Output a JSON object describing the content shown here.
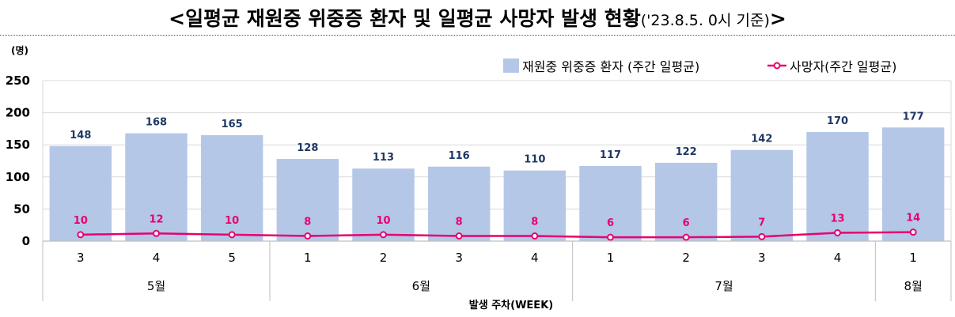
{
  "title": {
    "main": "<일평균 재원중 위중증 환자 및 일평균 사망자 발생 현황",
    "sub": "('23.8.5. 0시 기준)",
    "end": ">"
  },
  "chart_data": {
    "type": "bar",
    "ylabel": "(명)",
    "xlabel": "발생 주차(WEEK)",
    "ylim": [
      0,
      250
    ],
    "yticks": [
      "250",
      "200",
      "150",
      "100",
      "50",
      "0"
    ],
    "categories": [
      "3",
      "4",
      "5",
      "1",
      "2",
      "3",
      "4",
      "1",
      "2",
      "3",
      "4",
      "1"
    ],
    "months": [
      {
        "label": "5월",
        "weeks": 3
      },
      {
        "label": "6월",
        "weeks": 4
      },
      {
        "label": "7월",
        "weeks": 4
      },
      {
        "label": "8월",
        "weeks": 1
      }
    ],
    "series": [
      {
        "name": "재원중 위중증 환자 (주간 일평균)",
        "type": "bar",
        "color": "#b4c7e7",
        "values": [
          148,
          168,
          165,
          128,
          113,
          116,
          110,
          117,
          122,
          142,
          170,
          177
        ],
        "labels": [
          "148",
          "168",
          "165",
          "128",
          "113",
          "116",
          "110",
          "117",
          "122",
          "142",
          "170",
          "177"
        ]
      },
      {
        "name": "사망자(주간 일평균)",
        "type": "line",
        "color": "#e8006e",
        "values": [
          10,
          12,
          10,
          8,
          10,
          8,
          8,
          6,
          6,
          7,
          13,
          14
        ],
        "labels": [
          "10",
          "12",
          "10",
          "8",
          "10",
          "8",
          "8",
          "6",
          "6",
          "7",
          "13",
          "14"
        ]
      }
    ],
    "grid": true,
    "legend_position": "top-right"
  }
}
